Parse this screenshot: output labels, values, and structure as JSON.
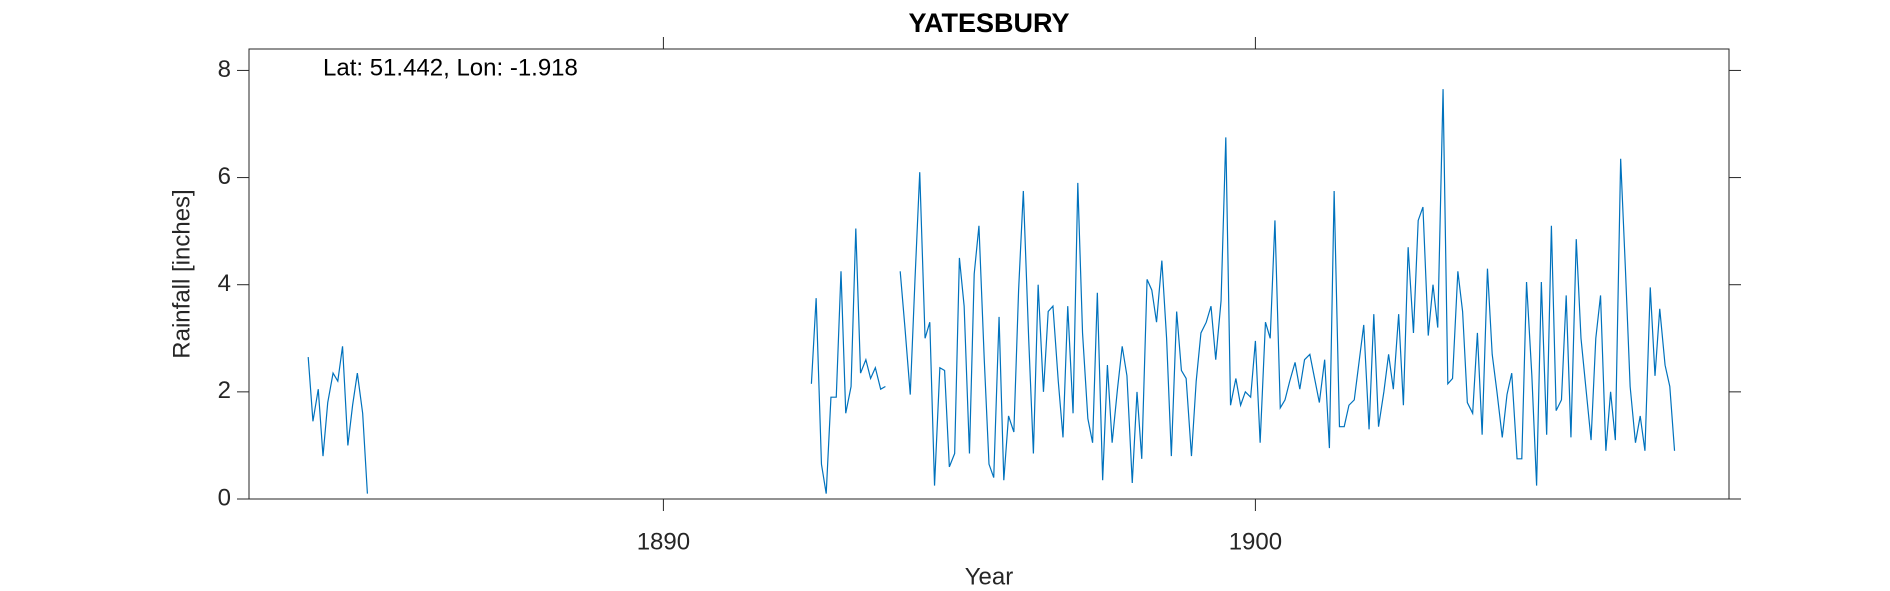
{
  "chart_data": {
    "type": "line",
    "title": "YATESBURY",
    "annotation": "Lat: 51.442, Lon: -1.918",
    "x_label": "Year",
    "y_label": "Rainfall [inches]",
    "xlim": [
      1883,
      1908
    ],
    "ylim": [
      0,
      8.4
    ],
    "xticks": [
      1890,
      1900
    ],
    "yticks": [
      0,
      2,
      4,
      6,
      8
    ],
    "grid": false,
    "x": [
      1884.0,
      1884.08,
      1884.17,
      1884.25,
      1884.33,
      1884.42,
      1884.5,
      1884.58,
      1884.67,
      1884.75,
      1884.83,
      1884.92,
      1885.0,
      1885.08,
      1892.5,
      1892.58,
      1892.67,
      1892.75,
      1892.83,
      1892.92,
      1893.0,
      1893.08,
      1893.17,
      1893.25,
      1893.33,
      1893.42,
      1893.5,
      1893.58,
      1893.67,
      1893.75,
      1893.83,
      1893.92,
      1894.0,
      1894.08,
      1894.17,
      1894.25,
      1894.33,
      1894.42,
      1894.5,
      1894.58,
      1894.67,
      1894.75,
      1894.83,
      1894.92,
      1895.0,
      1895.08,
      1895.17,
      1895.25,
      1895.33,
      1895.42,
      1895.5,
      1895.58,
      1895.67,
      1895.75,
      1895.83,
      1895.92,
      1896.0,
      1896.08,
      1896.17,
      1896.25,
      1896.33,
      1896.42,
      1896.5,
      1896.58,
      1896.67,
      1896.75,
      1896.83,
      1896.92,
      1897.0,
      1897.08,
      1897.17,
      1897.25,
      1897.33,
      1897.42,
      1897.5,
      1897.58,
      1897.67,
      1897.75,
      1897.83,
      1897.92,
      1898.0,
      1898.08,
      1898.17,
      1898.25,
      1898.33,
      1898.42,
      1898.5,
      1898.58,
      1898.67,
      1898.75,
      1898.83,
      1898.92,
      1899.0,
      1899.08,
      1899.17,
      1899.25,
      1899.33,
      1899.42,
      1899.5,
      1899.58,
      1899.67,
      1899.75,
      1899.83,
      1899.92,
      1900.0,
      1900.08,
      1900.17,
      1900.25,
      1900.33,
      1900.42,
      1900.5,
      1900.58,
      1900.67,
      1900.75,
      1900.83,
      1900.92,
      1901.0,
      1901.08,
      1901.17,
      1901.25,
      1901.33,
      1901.42,
      1901.5,
      1901.58,
      1901.67,
      1901.75,
      1901.83,
      1901.92,
      1902.0,
      1902.08,
      1902.17,
      1902.25,
      1902.33,
      1902.42,
      1902.5,
      1902.58,
      1902.67,
      1902.75,
      1902.83,
      1902.92,
      1903.0,
      1903.08,
      1903.17,
      1903.25,
      1903.33,
      1903.42,
      1903.5,
      1903.58,
      1903.67,
      1903.75,
      1903.83,
      1903.92,
      1904.0,
      1904.08,
      1904.17,
      1904.25,
      1904.33,
      1904.42,
      1904.5,
      1904.58,
      1904.67,
      1904.75,
      1904.83,
      1904.92,
      1905.0,
      1905.08,
      1905.17,
      1905.25,
      1905.33,
      1905.42,
      1905.5,
      1905.58,
      1905.67,
      1905.75,
      1905.83,
      1905.92,
      1906.0,
      1906.08,
      1906.17,
      1906.25,
      1906.33,
      1906.42,
      1906.5,
      1906.58,
      1906.67,
      1906.75,
      1906.83,
      1906.92,
      1907.0,
      1907.08
    ],
    "series": [
      {
        "color": "#0072bd",
        "values": [
          2.65,
          1.45,
          2.05,
          0.8,
          1.8,
          2.35,
          2.2,
          2.85,
          1.0,
          1.75,
          2.35,
          1.6,
          0.1,
          null,
          2.15,
          3.75,
          0.65,
          0.1,
          1.9,
          1.9,
          4.25,
          1.6,
          2.1,
          5.05,
          2.35,
          2.6,
          2.25,
          2.45,
          2.05,
          2.1,
          null,
          null,
          4.25,
          3.2,
          1.95,
          4.1,
          6.1,
          3.0,
          3.3,
          0.25,
          2.45,
          2.4,
          0.6,
          0.85,
          4.5,
          3.6,
          0.85,
          4.2,
          5.1,
          2.6,
          0.65,
          0.4,
          3.4,
          0.35,
          1.55,
          1.25,
          3.9,
          5.75,
          3.0,
          0.85,
          4.0,
          2.0,
          3.5,
          3.6,
          2.2,
          1.15,
          3.6,
          1.6,
          5.9,
          3.1,
          1.5,
          1.05,
          3.85,
          0.35,
          2.5,
          1.05,
          2.05,
          2.85,
          2.3,
          0.3,
          2.0,
          0.75,
          4.1,
          3.9,
          3.3,
          4.45,
          3.0,
          0.8,
          3.5,
          2.4,
          2.25,
          0.8,
          2.2,
          3.1,
          3.3,
          3.6,
          2.6,
          3.7,
          6.75,
          1.75,
          2.25,
          1.75,
          2.0,
          1.9,
          2.95,
          1.05,
          3.3,
          3.0,
          5.2,
          1.7,
          1.85,
          2.2,
          2.55,
          2.05,
          2.6,
          2.7,
          2.25,
          1.8,
          2.6,
          0.95,
          5.75,
          1.35,
          1.35,
          1.75,
          1.85,
          2.55,
          3.25,
          1.3,
          3.45,
          1.35,
          2.0,
          2.7,
          2.05,
          3.45,
          1.75,
          4.7,
          3.1,
          5.2,
          5.45,
          3.05,
          4.0,
          3.2,
          7.65,
          2.15,
          2.25,
          4.25,
          3.5,
          1.8,
          1.6,
          3.1,
          1.2,
          4.3,
          2.7,
          2.0,
          1.15,
          1.95,
          2.35,
          0.75,
          0.75,
          4.05,
          2.3,
          0.25,
          4.05,
          1.2,
          5.1,
          1.65,
          1.85,
          3.8,
          1.15,
          4.85,
          3.0,
          2.1,
          1.1,
          3.0,
          3.8,
          0.9,
          2.0,
          1.1,
          6.35,
          4.3,
          2.1,
          1.05,
          1.55,
          0.9,
          3.95,
          2.3,
          3.55,
          2.5,
          2.1,
          0.9
        ]
      }
    ]
  }
}
